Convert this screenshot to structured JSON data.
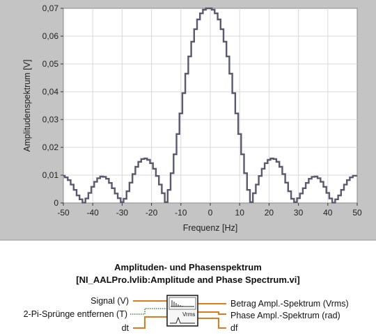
{
  "chart_data": {
    "type": "line",
    "title": "",
    "xlabel": "Frequenz [Hz]",
    "ylabel": "Amplitudenspektrum [V]",
    "xlim": [
      -50,
      50
    ],
    "ylim": [
      0,
      0.07
    ],
    "x_ticks": [
      "-50",
      "-40",
      "-30",
      "-20",
      "-10",
      "0",
      "10",
      "20",
      "30",
      "40",
      "50"
    ],
    "y_ticks": [
      "0",
      "0,01",
      "0,02",
      "0,03",
      "0,04",
      "0,05",
      "0,06",
      "0,07"
    ],
    "grid": true,
    "line_style": "step",
    "line_color": "#5a5a6e",
    "plot_bg": "#ffffff",
    "panel_bg": "#c4c4c4",
    "series": [
      {
        "x": [
          -50,
          -49,
          -48,
          -47,
          -46,
          -45,
          -44,
          -43,
          -42,
          -41,
          -40,
          -39,
          -38,
          -37,
          -36,
          -35,
          -34,
          -33,
          -32,
          -31,
          -30,
          -29,
          -28,
          -27,
          -26,
          -25,
          -24,
          -23,
          -22,
          -21,
          -20,
          -19,
          -18,
          -17,
          -16,
          -15,
          -14,
          -13,
          -12,
          -11,
          -10,
          -9,
          -8,
          -7,
          -6,
          -5,
          -4,
          -3,
          -2,
          -1,
          0,
          1,
          2,
          3,
          4,
          5,
          6,
          7,
          8,
          9,
          10,
          11,
          12,
          13,
          14,
          15,
          16,
          17,
          18,
          19,
          20,
          21,
          22,
          23,
          24,
          25,
          26,
          27,
          28,
          29,
          30,
          31,
          32,
          33,
          34,
          35,
          36,
          37,
          38,
          39,
          40,
          41,
          42,
          43,
          44,
          45,
          46,
          47,
          48,
          49,
          50
        ],
        "y": [
          0.0098,
          0.0092,
          0.0082,
          0.0066,
          0.0047,
          0.0027,
          0.0013,
          0.0001,
          0.0016,
          0.0036,
          0.0058,
          0.0076,
          0.0089,
          0.0095,
          0.0094,
          0.0087,
          0.0072,
          0.0053,
          0.0034,
          0.0017,
          0.0003,
          0.0015,
          0.0042,
          0.0073,
          0.0104,
          0.013,
          0.0148,
          0.0158,
          0.016,
          0.0155,
          0.0143,
          0.0123,
          0.0097,
          0.0066,
          0.0035,
          0.0003,
          0.0047,
          0.0107,
          0.0175,
          0.0248,
          0.0322,
          0.0395,
          0.0465,
          0.0527,
          0.058,
          0.0625,
          0.066,
          0.0682,
          0.0695,
          0.07,
          0.07,
          0.0695,
          0.0682,
          0.066,
          0.0625,
          0.058,
          0.0527,
          0.0465,
          0.0395,
          0.0322,
          0.0248,
          0.0175,
          0.0107,
          0.0047,
          0.0003,
          0.0035,
          0.0066,
          0.0097,
          0.0123,
          0.0143,
          0.0155,
          0.016,
          0.0158,
          0.0148,
          0.013,
          0.0104,
          0.0073,
          0.0042,
          0.0015,
          0.0003,
          0.0017,
          0.0034,
          0.0053,
          0.0072,
          0.0087,
          0.0094,
          0.0095,
          0.0089,
          0.0076,
          0.0058,
          0.0036,
          0.0016,
          0.0001,
          0.0013,
          0.0027,
          0.0047,
          0.0066,
          0.0082,
          0.0092,
          0.0098,
          0.0098
        ]
      }
    ]
  },
  "vi": {
    "title_line1": "Amplituden- und Phasenspektrum",
    "title_line2": "[NI_AALPro.lvlib:Amplitude and Phase Spectrum.vi]",
    "icon_text": "Vrms",
    "inputs": {
      "signal": "Signal (V)",
      "unwrap": "2-Pi-Sprünge entfernen (T)",
      "dt": "dt"
    },
    "outputs": {
      "magnitude": "Betrag Ampl.-Spektrum (Vrms)",
      "phase": "Phase Ampl.-Spektrum (rad)",
      "df": "df"
    },
    "wire_color": "#e07b1a",
    "bool_wire_color": "#3a8a3a"
  }
}
